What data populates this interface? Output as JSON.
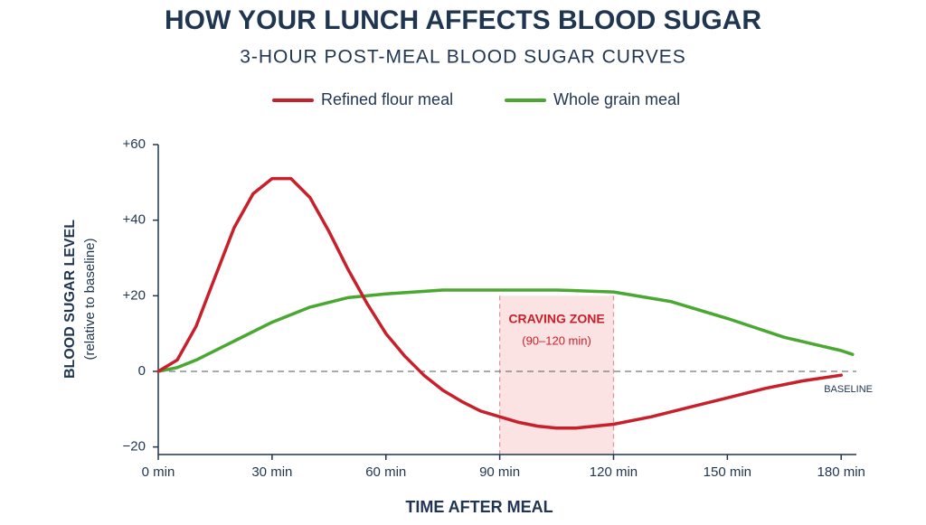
{
  "chart_data": {
    "type": "line",
    "title": "HOW YOUR LUNCH AFFECTS BLOOD SUGAR",
    "subtitle": "3-HOUR POST-MEAL BLOOD SUGAR CURVES",
    "x_label": "TIME AFTER MEAL",
    "y_label": "BLOOD SUGAR LEVEL",
    "y_sublabel": "(relative to baseline)",
    "series": [
      {
        "name": "Refined flour meal",
        "color": "#c8202a",
        "x": [
          0,
          5,
          10,
          15,
          20,
          25,
          30,
          35,
          40,
          45,
          50,
          55,
          60,
          65,
          70,
          75,
          80,
          85,
          90,
          95,
          100,
          105,
          110,
          115,
          120,
          130,
          140,
          150,
          160,
          170,
          180
        ],
        "values": [
          0,
          3,
          12,
          25,
          38,
          47,
          51,
          51,
          46,
          37,
          27,
          18,
          10,
          4,
          -1,
          -5,
          -8,
          -10.5,
          -12,
          -13.5,
          -14.5,
          -15,
          -15,
          -14.5,
          -14,
          -12,
          -9.5,
          -7,
          -4.5,
          -2.5,
          -1
        ]
      },
      {
        "name": "Whole grain meal",
        "color": "#4aa832",
        "x": [
          0,
          5,
          10,
          20,
          30,
          40,
          50,
          60,
          75,
          90,
          105,
          120,
          135,
          150,
          165,
          180,
          183
        ],
        "values": [
          0,
          1,
          3,
          8,
          13,
          17,
          19.5,
          20.5,
          21.5,
          21.5,
          21.5,
          21,
          18.5,
          14,
          9,
          5.5,
          4.5
        ]
      }
    ],
    "craving_zone": {
      "x": [
        90,
        120
      ],
      "label": "CRAVING ZONE",
      "sublabel": "(90–120 min)"
    },
    "baseline": {
      "value": 0,
      "label": "BASELINE"
    },
    "xlim": [
      0,
      184
    ],
    "ylim": [
      -22,
      60
    ],
    "xticks": [
      {
        "value": 0,
        "label": "0 min"
      },
      {
        "value": 30,
        "label": "30 min"
      },
      {
        "value": 60,
        "label": "60 min"
      },
      {
        "value": 90,
        "label": "90 min"
      },
      {
        "value": 120,
        "label": "120 min"
      },
      {
        "value": 150,
        "label": "150 min"
      },
      {
        "value": 180,
        "label": "180 min"
      }
    ],
    "yticks": [
      {
        "value": 60,
        "label": "+60"
      },
      {
        "value": 40,
        "label": "+40"
      },
      {
        "value": 20,
        "label": "+20"
      },
      0,
      {
        "value": -20,
        "label": "−20"
      }
    ]
  }
}
